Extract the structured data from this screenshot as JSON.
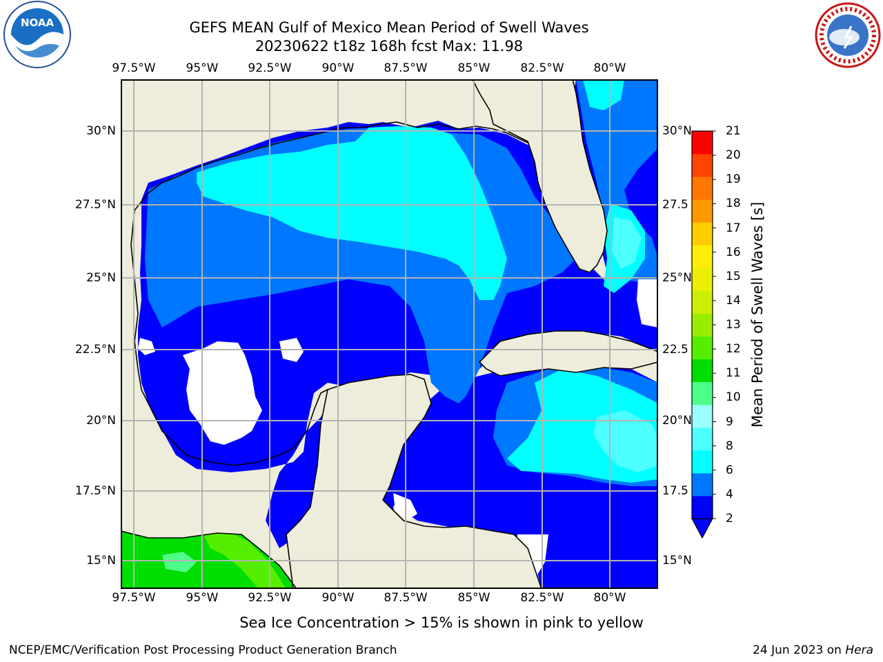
{
  "header": {
    "title_line1": "GEFS MEAN Gulf of Mexico Mean Period of Swell Waves",
    "title_line2": "20230622 t18z 168h fcst   Max: 11.98"
  },
  "logos": {
    "left": "NOAA",
    "right": "NATIONAL WEATHER SERVICE"
  },
  "map": {
    "lon_ticks": [
      "97.5°W",
      "95°W",
      "92.5°W",
      "90°W",
      "87.5°W",
      "85°W",
      "82.5°W",
      "80°W"
    ],
    "lat_ticks_left": [
      "30°N",
      "27.5°N",
      "25°N",
      "22.5°N",
      "20°N",
      "17.5°N",
      "15°N"
    ],
    "lat_ticks_right": [
      "30°N",
      "27.5",
      "25°N",
      "22.5",
      "20°N",
      "17.5",
      "15°N"
    ],
    "land_color": "#eeecdb",
    "grid_color": "#b3b3b3"
  },
  "colorbar": {
    "title": "Mean Period of Swell Waves [s]",
    "levels": [
      "2",
      "4",
      "6",
      "8",
      "9",
      "10",
      "11",
      "12",
      "13",
      "14",
      "15",
      "16",
      "17",
      "18",
      "19",
      "20",
      "21"
    ],
    "colors": [
      "#0000ff",
      "#0077ff",
      "#00ffff",
      "#4dffff",
      "#99ffff",
      "#4dff88",
      "#00dd00",
      "#55ee00",
      "#99ee00",
      "#ccee00",
      "#eeee00",
      "#ffee00",
      "#ffcc00",
      "#ff9900",
      "#ff7700",
      "#ff4400",
      "#ff0000"
    ],
    "extend": "min"
  },
  "caption": "Sea Ice Concentration > 15% is shown in pink to yellow",
  "footer": {
    "left": "NCEP/EMC/Verification Post Processing Product Generation Branch",
    "right_date": "24 Jun 2023 on ",
    "right_host": "Hera"
  }
}
